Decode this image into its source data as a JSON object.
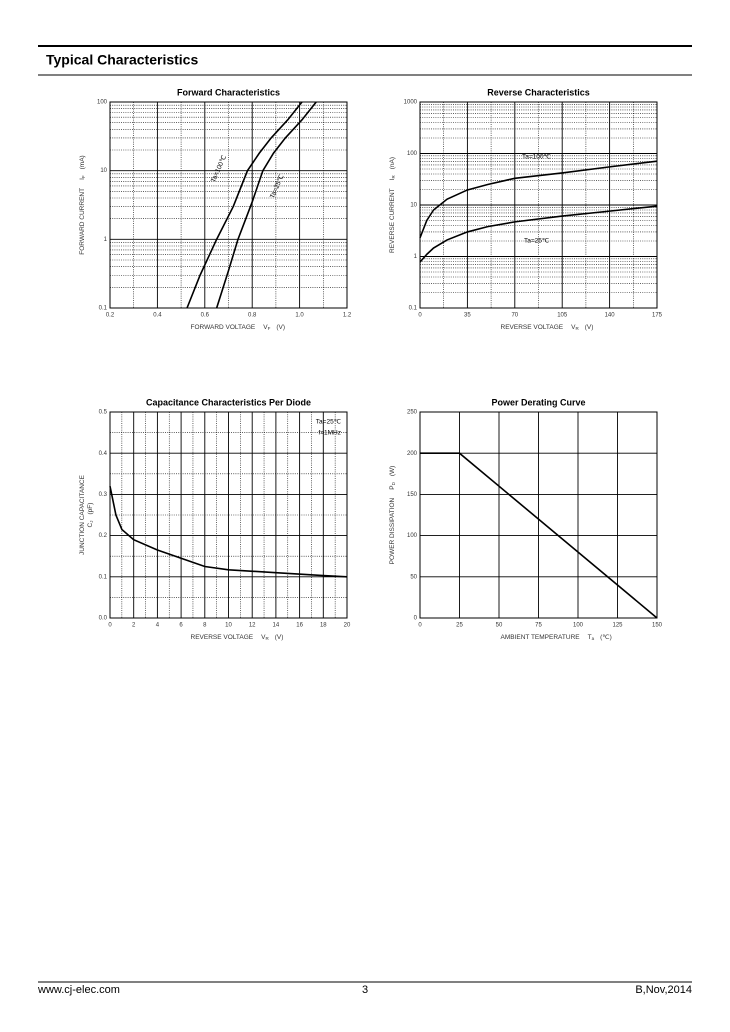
{
  "header": {
    "title": "Typical Characteristics"
  },
  "footer": {
    "left": "www.cj-elec.com",
    "center": "3",
    "right": "B,Nov,2014"
  },
  "chart_data": [
    {
      "type": "line",
      "title": "Forward    Characteristics",
      "xlabel": {
        "text": "FORWARD VOLTAGE",
        "symbol": "V",
        "sub": "F",
        "unit": "(V)"
      },
      "ylabel": {
        "text": "FORWARD CURRENT",
        "symbol": "I",
        "sub": "F",
        "unit": "(mA)"
      },
      "xlim": [
        0.2,
        1.2
      ],
      "xticks": [
        0.2,
        0.4,
        0.6,
        0.8,
        {
          "value": 1,
          "label": "1.0"
        },
        1.2
      ],
      "ylim": [
        0.1,
        100
      ],
      "yticks": [
        0.1,
        1,
        10,
        100
      ],
      "yscale": "log",
      "minor_grid": true,
      "color": "#000000",
      "series": [
        {
          "name": "Ta=100℃",
          "x": [
            0.525,
            0.58,
            0.65,
            0.72,
            0.78,
            0.83,
            0.88,
            0.95,
            1.01
          ],
          "values": [
            0.1,
            0.3,
            1,
            3,
            10,
            18,
            30,
            55,
            100
          ]
        },
        {
          "name": "Ta=25℃",
          "x": [
            0.65,
            0.7,
            0.74,
            0.8,
            0.845,
            0.89,
            0.94,
            1.01,
            1.07
          ],
          "values": [
            0.1,
            0.35,
            1,
            3.5,
            10,
            18,
            30,
            55,
            100
          ]
        }
      ]
    },
    {
      "type": "line",
      "title": "Reverse    Characteristics",
      "xlabel": {
        "text": "REVERSE VOLTAGE",
        "symbol": "V",
        "sub": "R",
        "unit": "(V)"
      },
      "ylabel": {
        "text": "REVERSE CURRENT",
        "symbol": "I",
        "sub": "R",
        "unit": "(nA)"
      },
      "xlim": [
        0,
        175
      ],
      "xticks": [
        0,
        35,
        70,
        105,
        140,
        175
      ],
      "ylim": [
        0.1,
        1000
      ],
      "yticks": [
        0.1,
        1,
        10,
        100,
        1000
      ],
      "yscale": "log",
      "minor_grid": true,
      "color": "#000000",
      "series": [
        {
          "name": "Ta=100℃",
          "x": [
            0,
            5,
            10,
            20,
            35,
            50,
            70,
            105,
            140,
            175
          ],
          "values": [
            2.3,
            5,
            8,
            13,
            19.6,
            25,
            33,
            42,
            55,
            71
          ]
        },
        {
          "name": "Ta=25℃",
          "x": [
            0,
            5,
            10,
            20,
            35,
            50,
            70,
            105,
            140,
            175
          ],
          "values": [
            0.78,
            1.1,
            1.46,
            2.1,
            3,
            3.8,
            4.7,
            6.1,
            7.6,
            9.5
          ]
        }
      ]
    },
    {
      "type": "line",
      "title": "Capacitance Characteristics Per Diode",
      "xlabel": {
        "text": "REVERSE VOLTAGE",
        "symbol": "V",
        "sub": "R",
        "unit": "(V)"
      },
      "ylabel": {
        "text": "JUNCTION CAPACITANCE",
        "symbol": "C",
        "sub": "J",
        "unit": "(pF)"
      },
      "xlim": [
        0,
        20
      ],
      "xticks": [
        0,
        2,
        4,
        6,
        8,
        10,
        12,
        14,
        16,
        18,
        20
      ],
      "ylim": [
        0,
        0.5
      ],
      "yticks": [
        {
          "value": 0,
          "label": "0.0"
        },
        0.1,
        0.2,
        0.3,
        0.4,
        0.5
      ],
      "minor_grid": true,
      "color": "#000000",
      "annotations": [
        "Ta=25℃",
        "f=1MHz"
      ],
      "series": [
        {
          "x": [
            0,
            0.5,
            1,
            2,
            4,
            6,
            8,
            10,
            14,
            18,
            20
          ],
          "values": [
            0.32,
            0.25,
            0.215,
            0.19,
            0.165,
            0.145,
            0.125,
            0.117,
            0.11,
            0.103,
            0.1
          ]
        }
      ]
    },
    {
      "type": "line",
      "title": "Power Derating Curve",
      "xlabel": {
        "text": "AMBIENT TEMPERATURE",
        "symbol": "T",
        "sub": "a",
        "unit": "(℃)"
      },
      "ylabel": {
        "text": "POWER DISSIPATION",
        "symbol": "P",
        "sub": "D",
        "unit": "(W)"
      },
      "xlim": [
        0,
        150
      ],
      "xticks": [
        0,
        25,
        50,
        75,
        100,
        125,
        150
      ],
      "ylim": [
        0,
        250
      ],
      "yticks": [
        0,
        50,
        100,
        150,
        200,
        250
      ],
      "minor_grid": false,
      "color": "#000000",
      "series": [
        {
          "x": [
            0,
            25,
            150
          ],
          "values": [
            200,
            200,
            0
          ]
        }
      ]
    }
  ]
}
